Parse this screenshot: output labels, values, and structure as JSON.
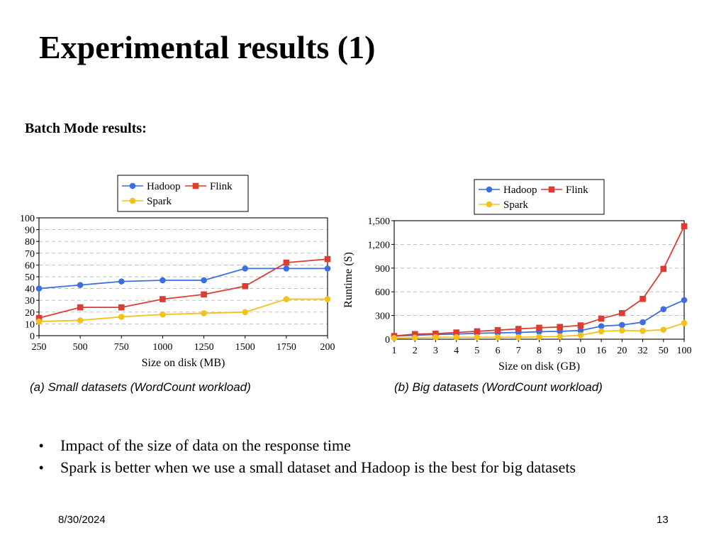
{
  "slide": {
    "title": "Experimental results (1)",
    "subtitle": "Batch Mode results:"
  },
  "bullets": [
    "Impact of the size of data on the response time",
    "Spark is better when we use a small dataset and Hadoop is the best for big datasets"
  ],
  "footer": {
    "date": "8/30/2024",
    "page": "13"
  },
  "chart_data": [
    {
      "type": "line",
      "caption": "(a) Small datasets (WordCount workload)",
      "xlabel": "Size on disk (MB)",
      "ylabel": "",
      "categories": [
        "250",
        "500",
        "750",
        "1000",
        "1250",
        "1500",
        "1750",
        "200"
      ],
      "y_ticks": [
        "0",
        "10",
        "20",
        "30",
        "40",
        "50",
        "60",
        "70",
        "80",
        "90",
        "100"
      ],
      "ylim": [
        0,
        100
      ],
      "grid": true,
      "legend": "top",
      "series": [
        {
          "name": "Hadoop",
          "color": "#3b6fe0",
          "marker": "circle",
          "values": [
            40,
            43,
            46,
            47,
            47,
            57,
            57,
            57
          ]
        },
        {
          "name": "Flink",
          "color": "#dc3c32",
          "marker": "square",
          "values": [
            15,
            24,
            24,
            31,
            35,
            42,
            62,
            65
          ]
        },
        {
          "name": "Spark",
          "color": "#f2c21b",
          "marker": "circle",
          "values": [
            12,
            13,
            16,
            18,
            19,
            20,
            31,
            31
          ]
        }
      ]
    },
    {
      "type": "line",
      "caption": "(b) Big datasets (WordCount workload)",
      "xlabel": "Size on disk (GB)",
      "ylabel": "Runtime (S)",
      "categories": [
        "1",
        "2",
        "3",
        "4",
        "5",
        "6",
        "7",
        "8",
        "9",
        "10",
        "16",
        "20",
        "32",
        "50",
        "100"
      ],
      "y_ticks": [
        "0",
        "300",
        "600",
        "900",
        "1,200",
        "1,500"
      ],
      "ylim": [
        0,
        1500
      ],
      "grid": true,
      "legend": "top",
      "series": [
        {
          "name": "Hadoop",
          "color": "#3b6fe0",
          "marker": "circle",
          "values": [
            40,
            50,
            60,
            65,
            75,
            80,
            85,
            95,
            100,
            110,
            165,
            180,
            215,
            380,
            495
          ]
        },
        {
          "name": "Flink",
          "color": "#dc3c32",
          "marker": "square",
          "values": [
            40,
            65,
            70,
            85,
            100,
            115,
            130,
            145,
            155,
            175,
            260,
            330,
            510,
            890,
            1430
          ]
        },
        {
          "name": "Spark",
          "color": "#f2c21b",
          "marker": "circle",
          "values": [
            15,
            20,
            25,
            25,
            25,
            25,
            25,
            30,
            35,
            50,
            100,
            110,
            105,
            120,
            205
          ]
        }
      ]
    }
  ]
}
